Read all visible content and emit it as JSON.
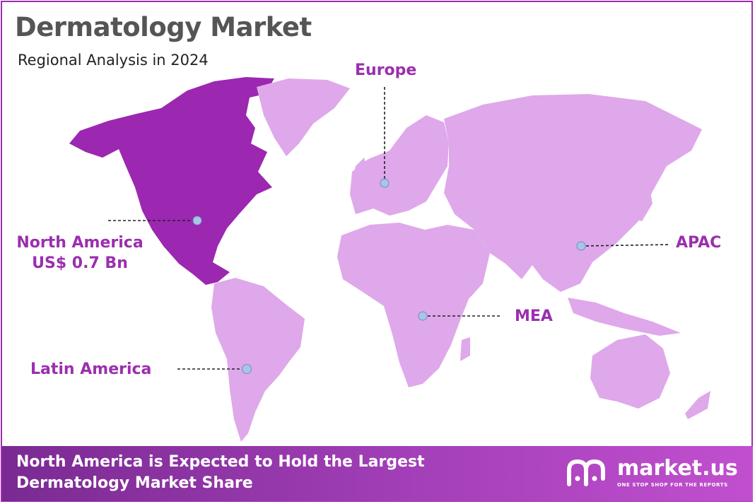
{
  "header": {
    "title": "Dermatology Market",
    "subtitle": "Regional Analysis in 2024"
  },
  "regions": {
    "north_america": {
      "name": "North America",
      "value": "US$ 0.7 Bn"
    },
    "europe": {
      "name": "Europe"
    },
    "apac": {
      "name": "APAC"
    },
    "mea": {
      "name": "MEA"
    },
    "latin_america": {
      "name": "Latin America"
    }
  },
  "footer": {
    "line1": "North America is Expected to Hold the Largest",
    "line2": "Dermatology Market Share"
  },
  "brand": {
    "name": "market.us",
    "tagline": "ONE STOP SHOP FOR THE REPORTS"
  },
  "colors": {
    "accent": "#9b2fae",
    "highlight_region": "#9c27b0",
    "other_regions": "#dfa8ea",
    "marker": "#a9c4e8"
  }
}
